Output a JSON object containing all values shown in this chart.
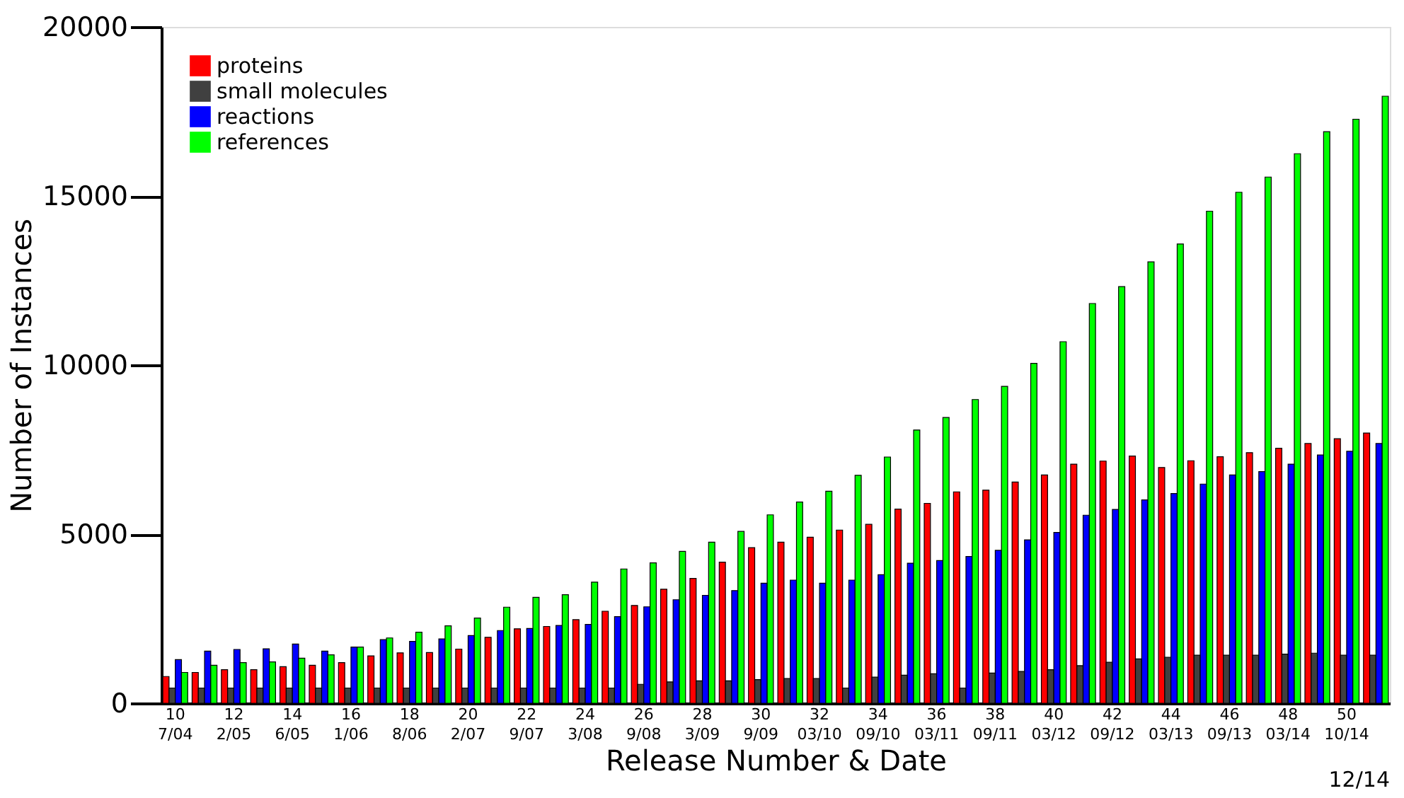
{
  "chart_data": {
    "type": "bar",
    "xlabel": "Release Number & Date",
    "ylabel": "Number of Instances",
    "categories": [
      "10\n7/04",
      null,
      "12\n2/05",
      null,
      "14\n6/05",
      null,
      "16\n1/06",
      null,
      "18\n8/06",
      null,
      "20\n2/07",
      null,
      "22\n9/07",
      null,
      "24\n3/08",
      null,
      "26\n9/08",
      null,
      "28\n3/09",
      null,
      "30\n9/09",
      null,
      "32\n03/10",
      null,
      "34\n09/10",
      null,
      "36\n03/11",
      null,
      "38\n09/11",
      null,
      "40\n03/12",
      null,
      "42\n09/12",
      null,
      "44\n03/13",
      null,
      "46\n09/13",
      null,
      "48\n03/14",
      null,
      "50\n10/14",
      null
    ],
    "series": [
      {
        "name": "proteins",
        "color": "#ff0000",
        "values": [
          790,
          910,
          990,
          990,
          1080,
          1120,
          1200,
          1400,
          1490,
          1500,
          1600,
          1950,
          2200,
          2270,
          2470,
          2720,
          2890,
          3370,
          3690,
          4170,
          4600,
          4760,
          4910,
          5120,
          5290,
          5740,
          5910,
          6250,
          6300,
          6540,
          6750,
          7070,
          7160,
          7310,
          6970,
          7170,
          7290,
          7410,
          7540,
          7680,
          7820,
          7990
        ]
      },
      {
        "name": "small molecules",
        "color": "#404040",
        "values": [
          450,
          450,
          450,
          450,
          450,
          450,
          450,
          450,
          450,
          450,
          450,
          450,
          450,
          450,
          450,
          450,
          560,
          630,
          660,
          660,
          700,
          730,
          730,
          450,
          770,
          830,
          870,
          450,
          890,
          940,
          990,
          1110,
          1210,
          1310,
          1360,
          1420,
          1420,
          1420,
          1450,
          1480,
          1420,
          1420
        ]
      },
      {
        "name": "reactions",
        "color": "#0000ff",
        "values": [
          1290,
          1540,
          1590,
          1610,
          1750,
          1540,
          1660,
          1880,
          1830,
          1900,
          2000,
          2150,
          2210,
          2300,
          2330,
          2560,
          2850,
          3060,
          3190,
          3330,
          3550,
          3640,
          3550,
          3640,
          3800,
          4140,
          4220,
          4340,
          4520,
          4830,
          5050,
          5560,
          5730,
          6010,
          6200,
          6480,
          6750,
          6850,
          7070,
          7340,
          7450,
          7680
        ]
      },
      {
        "name": "references",
        "color": "#00ff00",
        "values": [
          910,
          1120,
          1200,
          1220,
          1330,
          1430,
          1660,
          1930,
          2100,
          2290,
          2520,
          2840,
          3130,
          3210,
          3580,
          3970,
          4150,
          4490,
          4760,
          5080,
          5570,
          5950,
          6270,
          6740,
          7280,
          8080,
          8450,
          8980,
          9370,
          10050,
          10690,
          11820,
          12320,
          13050,
          13580,
          14550,
          15110,
          15560,
          16250,
          16900,
          17270,
          17950
        ]
      }
    ],
    "ylim": [
      0,
      20000
    ],
    "yticks": [
      0,
      5000,
      10000,
      15000,
      20000
    ],
    "grid": false,
    "legend": "top left",
    "annotations": [
      "12/14"
    ]
  }
}
